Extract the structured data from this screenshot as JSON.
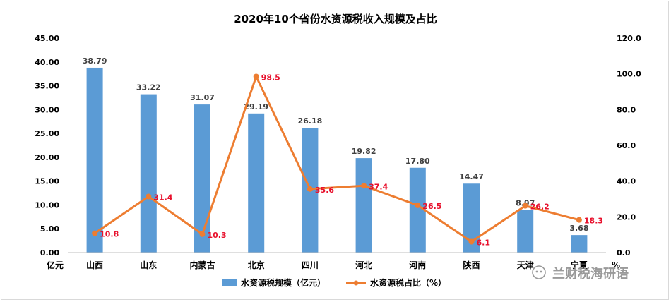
{
  "chart_data": {
    "type": "bar",
    "title": "2020年10个省份水资源税收入规模及占比",
    "categories": [
      "山西",
      "山东",
      "内蒙古",
      "北京",
      "四川",
      "河北",
      "河南",
      "陕西",
      "天津",
      "宁夏"
    ],
    "series": [
      {
        "name": "水资源税规模（亿元）",
        "type": "bar",
        "axis": "left",
        "values": [
          38.79,
          33.22,
          31.07,
          29.19,
          26.18,
          19.82,
          17.8,
          14.47,
          8.97,
          3.68
        ],
        "labels": [
          "38.79",
          "33.22",
          "31.07",
          "29.19",
          "26.18",
          "19.82",
          "17.80",
          "14.47",
          "8.97",
          "3.68"
        ],
        "color": "#5b9bd5"
      },
      {
        "name": "水资源税占比（%）",
        "type": "line",
        "axis": "right",
        "values": [
          10.8,
          31.4,
          10.3,
          98.5,
          35.6,
          37.4,
          26.5,
          6.1,
          26.2,
          18.3
        ],
        "labels": [
          "10.8",
          "31.4",
          "10.3",
          "98.5",
          "35.6",
          "37.4",
          "26.5",
          "6.1",
          "26.2",
          "18.3"
        ],
        "color": "#ed7d31"
      }
    ],
    "y_left": {
      "label": "亿元",
      "ylim": [
        0,
        45
      ],
      "ticks": [
        "0.00",
        "5.00",
        "10.00",
        "15.00",
        "20.00",
        "25.00",
        "30.00",
        "35.00",
        "40.00",
        "45.00"
      ]
    },
    "y_right": {
      "label": "%",
      "ylim": [
        0,
        120
      ],
      "ticks": [
        "0.0",
        "20.0",
        "40.0",
        "60.0",
        "80.0",
        "100.0",
        "120.0"
      ]
    },
    "grid": false,
    "legend": "bottom-center"
  },
  "watermark": "兰财税海研语"
}
